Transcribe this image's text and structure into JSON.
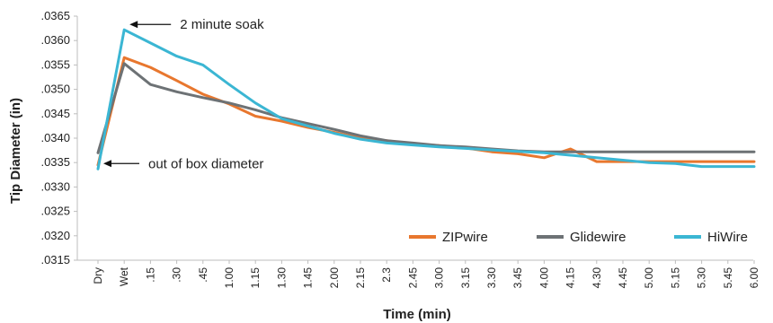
{
  "chart_data": {
    "type": "line",
    "title": "",
    "xlabel": "Time (min)",
    "ylabel": "Tip Diameter (in)",
    "x": [
      "Dry",
      "Wet",
      ".15",
      ".30",
      ".45",
      "1.00",
      "1.15",
      "1.30",
      "1.45",
      "2.00",
      "2.15",
      "2.3",
      "2.45",
      "3.00",
      "3.15",
      "3.30",
      "3.45",
      "4.00",
      "4.15",
      "4.30",
      "4.45",
      "5.00",
      "5.15",
      "5.30",
      "5.45",
      "6.00"
    ],
    "ylim": [
      0.0315,
      0.0365
    ],
    "yticks": [
      ".0315",
      ".0320",
      ".0325",
      ".0330",
      ".0335",
      ".0340",
      ".0345",
      ".0350",
      ".0355",
      ".0360",
      ".0365"
    ],
    "grid": false,
    "legend_position": "bottom-right",
    "series": [
      {
        "name": "ZIPwire",
        "color": "#e8772e",
        "values": [
          0.03345,
          0.03565,
          0.03545,
          0.03518,
          0.0349,
          0.0347,
          0.03445,
          0.03435,
          0.03422,
          0.03412,
          0.034,
          0.03395,
          0.03388,
          0.03385,
          0.0338,
          0.03372,
          0.03368,
          0.0336,
          0.03378,
          0.03352,
          0.03352,
          0.03352,
          0.03352,
          0.03352,
          0.03352,
          0.03352
        ]
      },
      {
        "name": "Glidewire",
        "color": "#6d7275",
        "values": [
          0.0337,
          0.03553,
          0.0351,
          0.03495,
          0.03483,
          0.03472,
          0.03458,
          0.03442,
          0.0343,
          0.03418,
          0.03405,
          0.03395,
          0.0339,
          0.03385,
          0.03382,
          0.03378,
          0.03374,
          0.03372,
          0.03372,
          0.03372,
          0.03372,
          0.03372,
          0.03372,
          0.03372,
          0.03372,
          0.03372
        ]
      },
      {
        "name": "HiWire",
        "color": "#3bb6d3",
        "values": [
          0.03337,
          0.03622,
          0.03595,
          0.03568,
          0.0355,
          0.0351,
          0.03472,
          0.0344,
          0.03425,
          0.0341,
          0.03398,
          0.0339,
          0.03386,
          0.03382,
          0.03379,
          0.03376,
          0.03373,
          0.0337,
          0.03365,
          0.0336,
          0.03355,
          0.0335,
          0.03348,
          0.03342,
          0.03342,
          0.03342
        ]
      }
    ],
    "annotations": [
      {
        "text": "2 minute soak",
        "x": "Wet",
        "y": 0.03622
      },
      {
        "text": "out of box diameter",
        "x": "Dry",
        "y": 0.03337
      }
    ]
  }
}
